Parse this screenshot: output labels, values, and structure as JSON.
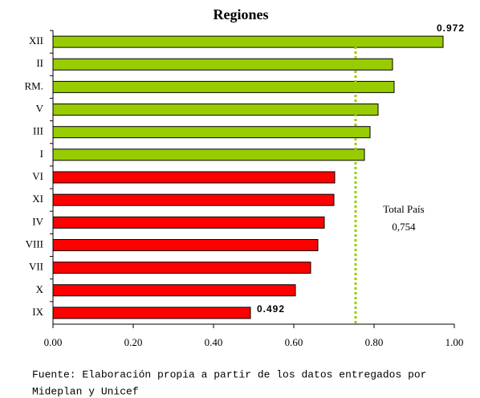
{
  "chart_data": {
    "type": "hbar",
    "title": "Regiones",
    "categories": [
      "XII",
      "II",
      "RM.",
      "V",
      "III",
      "I",
      "VI",
      "XI",
      "IV",
      "VIII",
      "VII",
      "X",
      "IX"
    ],
    "values": [
      0.972,
      0.846,
      0.85,
      0.81,
      0.79,
      0.776,
      0.702,
      0.7,
      0.676,
      0.66,
      0.642,
      0.604,
      0.492
    ],
    "value_labels": [
      "0.972",
      null,
      null,
      null,
      null,
      null,
      null,
      null,
      null,
      null,
      null,
      null,
      "0.492"
    ],
    "colors": [
      "#99cc00",
      "#99cc00",
      "#99cc00",
      "#99cc00",
      "#99cc00",
      "#99cc00",
      "#ff0000",
      "#ff0000",
      "#ff0000",
      "#ff0000",
      "#ff0000",
      "#ff0000",
      "#ff0000"
    ],
    "xlim": [
      0,
      1
    ],
    "xticks": [
      {
        "value": 0,
        "label": "0.00"
      },
      {
        "value": 0.2,
        "label": "0.20"
      },
      {
        "value": 0.4,
        "label": "0.40"
      },
      {
        "value": 0.6,
        "label": "0.60"
      },
      {
        "value": 0.8,
        "label": "0.80"
      },
      {
        "value": 1,
        "label": "1.00"
      }
    ],
    "reference_line": {
      "value": 0.754,
      "label": "0,754",
      "name": "Total País",
      "color": "#99cc00"
    },
    "source": [
      "Fuente: Elaboración propia a partir de los datos entregados por",
      "Mideplan y Unicef"
    ]
  }
}
